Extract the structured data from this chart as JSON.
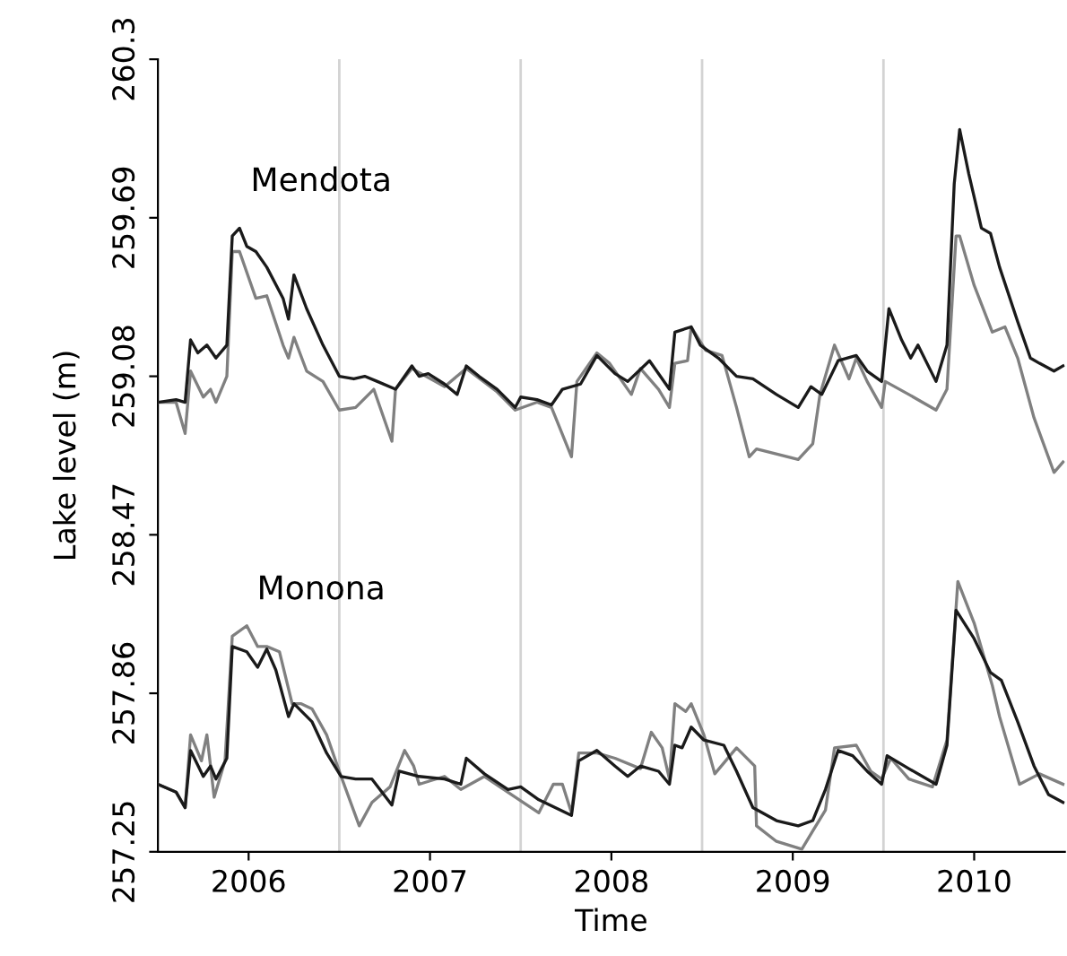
{
  "chart_data": {
    "type": "line",
    "xlabel": "Time",
    "ylabel": "Lake level (m)",
    "xlim": [
      2005.5,
      2010.5
    ],
    "xticks": [
      2006,
      2007,
      2008,
      2009,
      2010
    ],
    "ylim": [
      257.25,
      260.3
    ],
    "yticks": [
      257.25,
      257.86,
      258.47,
      259.08,
      259.69,
      260.3
    ],
    "grid": false,
    "marker": "none",
    "line_style": "solid",
    "ref_lines": [
      {
        "axis": "x",
        "value": 2006.5,
        "color": "#d3d3d3"
      },
      {
        "axis": "x",
        "value": 2007.5,
        "color": "#d3d3d3"
      },
      {
        "axis": "x",
        "value": 2008.5,
        "color": "#d3d3d3"
      },
      {
        "axis": "x",
        "value": 2009.5,
        "color": "#d3d3d3"
      }
    ],
    "annotations": [
      "Mendota",
      "Monona"
    ],
    "series": [
      {
        "color": "#808080",
        "x": [
          2005.5,
          2005.6,
          2005.65,
          2005.68,
          2005.75,
          2005.79,
          2005.82,
          2005.88,
          2005.91,
          2005.95,
          2006.04,
          2006.1,
          2006.19,
          2006.22,
          2006.25,
          2006.32,
          2006.41,
          2006.5,
          2006.59,
          2006.69,
          2006.79,
          2006.81,
          2006.9,
          2007.08,
          2007.2,
          2007.37,
          2007.47,
          2007.59,
          2007.67,
          2007.78,
          2007.81,
          2007.92,
          2007.99,
          2008.11,
          2008.16,
          2008.26,
          2008.32,
          2008.35,
          2008.42,
          2008.44,
          2008.52,
          2008.61,
          2008.69,
          2008.76,
          2008.8,
          2009.03,
          2009.11,
          2009.15,
          2009.23,
          2009.31,
          2009.35,
          2009.41,
          2009.49,
          2009.51,
          2009.64,
          2009.79,
          2009.85,
          2009.9,
          2009.92,
          2010.0,
          2010.1,
          2010.17,
          2010.24,
          2010.33,
          2010.44,
          2010.49
        ],
        "values": [
          258.98,
          258.98,
          258.86,
          259.1,
          259.0,
          259.03,
          258.98,
          259.08,
          259.56,
          259.56,
          259.38,
          259.39,
          259.2,
          259.15,
          259.23,
          259.1,
          259.06,
          258.95,
          258.96,
          259.03,
          258.83,
          259.03,
          259.11,
          259.04,
          259.11,
          259.02,
          258.95,
          258.98,
          258.96,
          258.77,
          259.06,
          259.17,
          259.13,
          259.01,
          259.11,
          259.03,
          258.96,
          259.13,
          259.14,
          259.27,
          259.18,
          259.16,
          258.96,
          258.77,
          258.8,
          258.76,
          258.82,
          259.01,
          259.2,
          259.07,
          259.15,
          259.06,
          258.96,
          259.06,
          259.01,
          258.95,
          259.03,
          259.62,
          259.62,
          259.43,
          259.25,
          259.27,
          259.15,
          258.92,
          258.71,
          258.75
        ]
      },
      {
        "color": "#1a1a1a",
        "x": [
          2005.5,
          2005.6,
          2005.65,
          2005.68,
          2005.72,
          2005.77,
          2005.82,
          2005.88,
          2005.91,
          2005.95,
          2005.99,
          2006.04,
          2006.1,
          2006.19,
          2006.22,
          2006.25,
          2006.32,
          2006.41,
          2006.5,
          2006.58,
          2006.64,
          2006.71,
          2006.81,
          2006.9,
          2006.94,
          2006.99,
          2007.08,
          2007.15,
          2007.2,
          2007.27,
          2007.37,
          2007.47,
          2007.5,
          2007.59,
          2007.67,
          2007.73,
          2007.83,
          2007.92,
          2008.02,
          2008.09,
          2008.21,
          2008.32,
          2008.35,
          2008.44,
          2008.49,
          2008.59,
          2008.69,
          2008.78,
          2008.91,
          2009.03,
          2009.1,
          2009.16,
          2009.25,
          2009.35,
          2009.41,
          2009.49,
          2009.53,
          2009.6,
          2009.65,
          2009.69,
          2009.79,
          2009.85,
          2009.89,
          2009.92,
          2009.97,
          2010.04,
          2010.09,
          2010.14,
          2010.24,
          2010.31,
          2010.36,
          2010.44,
          2010.49
        ],
        "values": [
          258.98,
          258.99,
          258.98,
          259.22,
          259.17,
          259.2,
          259.15,
          259.2,
          259.62,
          259.65,
          259.58,
          259.56,
          259.5,
          259.38,
          259.3,
          259.47,
          259.34,
          259.2,
          259.08,
          259.07,
          259.08,
          259.06,
          259.03,
          259.12,
          259.08,
          259.09,
          259.05,
          259.01,
          259.12,
          259.08,
          259.03,
          258.96,
          259.0,
          258.99,
          258.97,
          259.03,
          259.05,
          259.16,
          259.09,
          259.06,
          259.14,
          259.03,
          259.25,
          259.27,
          259.2,
          259.15,
          259.08,
          259.07,
          259.01,
          258.96,
          259.04,
          259.01,
          259.14,
          259.16,
          259.1,
          259.06,
          259.34,
          259.22,
          259.15,
          259.2,
          259.06,
          259.2,
          259.82,
          260.03,
          259.86,
          259.65,
          259.63,
          259.5,
          259.29,
          259.15,
          259.13,
          259.1,
          259.12
        ]
      },
      {
        "color": "#808080",
        "x": [
          2005.5,
          2005.6,
          2005.65,
          2005.68,
          2005.74,
          2005.77,
          2005.81,
          2005.87,
          2005.91,
          2005.99,
          2006.05,
          2006.1,
          2006.17,
          2006.24,
          2006.29,
          2006.35,
          2006.43,
          2006.51,
          2006.61,
          2006.68,
          2006.78,
          2006.86,
          2006.91,
          2006.94,
          2007.08,
          2007.17,
          2007.3,
          2007.47,
          2007.6,
          2007.68,
          2007.73,
          2007.78,
          2007.82,
          2007.92,
          2008.02,
          2008.16,
          2008.22,
          2008.28,
          2008.32,
          2008.35,
          2008.41,
          2008.44,
          2008.51,
          2008.57,
          2008.69,
          2008.79,
          2008.8,
          2008.91,
          2009.05,
          2009.11,
          2009.18,
          2009.23,
          2009.35,
          2009.43,
          2009.49,
          2009.54,
          2009.64,
          2009.77,
          2009.85,
          2009.91,
          2010.0,
          2010.1,
          2010.14,
          2010.25,
          2010.36,
          2010.49
        ],
        "values": [
          257.51,
          257.48,
          257.42,
          257.7,
          257.6,
          257.7,
          257.46,
          257.6,
          258.08,
          258.12,
          258.04,
          258.04,
          258.02,
          257.82,
          257.82,
          257.8,
          257.7,
          257.54,
          257.35,
          257.44,
          257.5,
          257.64,
          257.58,
          257.51,
          257.54,
          257.49,
          257.54,
          257.46,
          257.4,
          257.51,
          257.51,
          257.4,
          257.63,
          257.63,
          257.61,
          257.57,
          257.71,
          257.65,
          257.53,
          257.82,
          257.79,
          257.82,
          257.7,
          257.55,
          257.65,
          257.58,
          257.35,
          257.29,
          257.26,
          257.33,
          257.41,
          257.65,
          257.66,
          257.56,
          257.53,
          257.61,
          257.53,
          257.5,
          257.68,
          258.29,
          258.13,
          257.89,
          257.77,
          257.51,
          257.55,
          257.51
        ]
      },
      {
        "color": "#1a1a1a",
        "x": [
          2005.5,
          2005.6,
          2005.65,
          2005.68,
          2005.75,
          2005.79,
          2005.82,
          2005.88,
          2005.91,
          2005.99,
          2006.05,
          2006.1,
          2006.15,
          2006.22,
          2006.25,
          2006.35,
          2006.43,
          2006.51,
          2006.59,
          2006.68,
          2006.79,
          2006.83,
          2006.94,
          2007.08,
          2007.17,
          2007.2,
          2007.3,
          2007.43,
          2007.5,
          2007.6,
          2007.78,
          2007.82,
          2007.92,
          2008.02,
          2008.09,
          2008.16,
          2008.26,
          2008.32,
          2008.35,
          2008.39,
          2008.44,
          2008.51,
          2008.62,
          2008.69,
          2008.78,
          2008.91,
          2009.03,
          2009.11,
          2009.18,
          2009.25,
          2009.33,
          2009.41,
          2009.49,
          2009.52,
          2009.64,
          2009.79,
          2009.85,
          2009.9,
          2010.0,
          2010.09,
          2010.15,
          2010.24,
          2010.33,
          2010.41,
          2010.49
        ],
        "values": [
          257.51,
          257.48,
          257.42,
          257.64,
          257.54,
          257.58,
          257.53,
          257.61,
          258.04,
          258.02,
          257.96,
          258.03,
          257.95,
          257.77,
          257.82,
          257.75,
          257.63,
          257.54,
          257.53,
          257.53,
          257.43,
          257.56,
          257.54,
          257.53,
          257.51,
          257.61,
          257.55,
          257.49,
          257.5,
          257.45,
          257.39,
          257.6,
          257.64,
          257.58,
          257.54,
          257.58,
          257.56,
          257.51,
          257.66,
          257.65,
          257.73,
          257.68,
          257.66,
          257.56,
          257.42,
          257.37,
          257.35,
          257.37,
          257.49,
          257.64,
          257.62,
          257.56,
          257.51,
          257.62,
          257.57,
          257.51,
          257.66,
          258.18,
          258.07,
          257.94,
          257.91,
          257.75,
          257.58,
          257.47,
          257.44
        ]
      }
    ]
  }
}
